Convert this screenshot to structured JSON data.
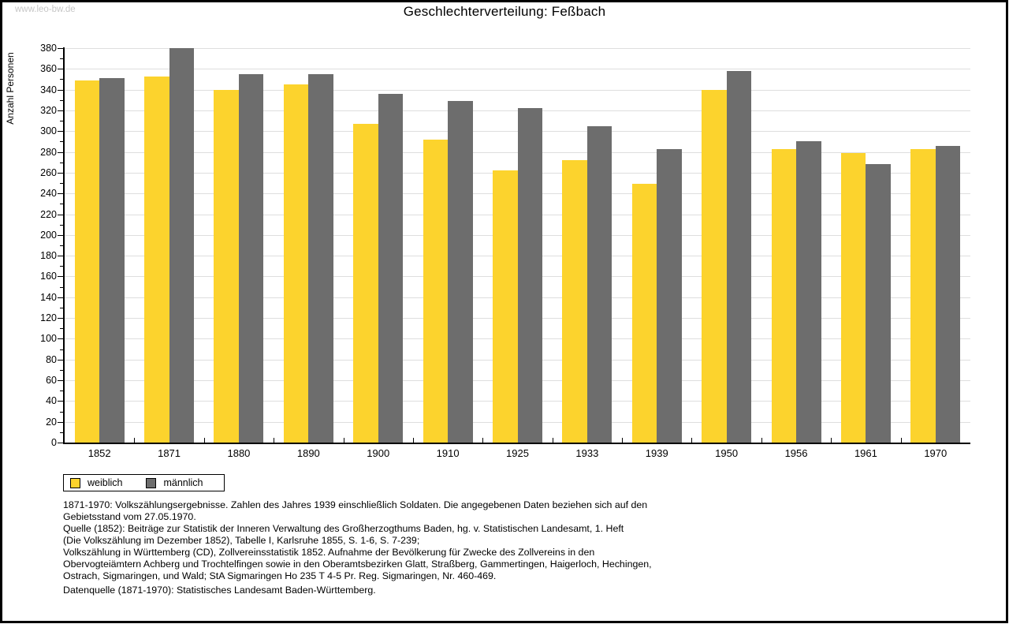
{
  "watermark": "www.leo-bw.de",
  "title": "Geschlechterverteilung: Feßbach",
  "chart_data": {
    "type": "bar",
    "title": "Geschlechterverteilung: Feßbach",
    "xlabel": "",
    "ylabel": "Anzahl Personen",
    "ylim": [
      0,
      380
    ],
    "ytick_step": 20,
    "ytick_minor_step": 10,
    "grid": true,
    "legend_position": "bottom-left",
    "categories": [
      "1852",
      "1871",
      "1880",
      "1890",
      "1900",
      "1910",
      "1925",
      "1933",
      "1939",
      "1950",
      "1956",
      "1961",
      "1970"
    ],
    "series": [
      {
        "key": "weiblich",
        "name": "weiblich",
        "color": "#fcd32d",
        "values": [
          349,
          353,
          340,
          345,
          307,
          292,
          262,
          272,
          249,
          340,
          283,
          279,
          283
        ]
      },
      {
        "key": "maennlich",
        "name": "männlich",
        "color": "#6d6d6d",
        "values": [
          351,
          380,
          355,
          355,
          336,
          329,
          322,
          305,
          283,
          358,
          290,
          268,
          286
        ]
      }
    ]
  },
  "colors": {
    "female": "#fcd32d",
    "male": "#6d6d6d",
    "gridline": "#dedede",
    "watermark": "#c6c6c6",
    "axis": "#000000"
  },
  "footnotes": [
    "1871-1970: Volkszählungsergebnisse. Zahlen des Jahres 1939 einschließlich Soldaten. Die angegebenen Daten beziehen sich auf den",
    "Gebietsstand vom 27.05.1970.",
    "Quelle (1852): Beiträge zur Statistik der Inneren Verwaltung des Großherzogthums Baden, hg. v. Statistischen Landesamt, 1. Heft",
    "(Die Volkszählung im Dezember 1852), Tabelle I, Karlsruhe 1855, S. 1-6, S. 7-239;",
    "Volkszählung in Württemberg (CD), Zollvereinsstatistik 1852. Aufnahme der Bevölkerung für Zwecke des Zollvereins in den",
    "Obervogteiämtern Achberg und Trochtelfingen sowie in den Oberamtsbezirken Glatt, Straßberg, Gammertingen, Haigerloch, Hechingen,",
    "Ostrach, Sigmaringen, und Wald; StA Sigmaringen Ho 235 T 4-5 Pr. Reg. Sigmaringen, Nr. 460-469."
  ],
  "datasource": "Datenquelle (1871-1970): Statistisches Landesamt Baden-Württemberg."
}
